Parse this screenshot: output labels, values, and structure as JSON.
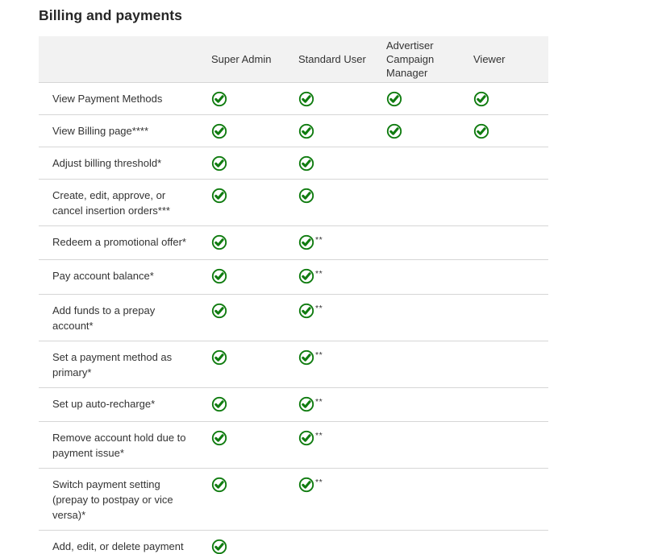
{
  "title": "Billing and payments",
  "colors": {
    "check_green": "#107C10",
    "header_bg": "#f2f2f2",
    "divider": "#d6d6d6",
    "text": "#333333",
    "title_text": "#262626"
  },
  "table": {
    "columns": [
      {
        "label": ""
      },
      {
        "label": "Super Admin"
      },
      {
        "label": "Standard User"
      },
      {
        "label": "Advertiser Campaign Manager"
      },
      {
        "label": "Viewer"
      }
    ],
    "rows": [
      {
        "label": "View Payment Methods",
        "cells": [
          {
            "check": true,
            "suffix": ""
          },
          {
            "check": true,
            "suffix": ""
          },
          {
            "check": true,
            "suffix": ""
          },
          {
            "check": true,
            "suffix": ""
          }
        ]
      },
      {
        "label": "View Billing page****",
        "cells": [
          {
            "check": true,
            "suffix": ""
          },
          {
            "check": true,
            "suffix": ""
          },
          {
            "check": true,
            "suffix": ""
          },
          {
            "check": true,
            "suffix": ""
          }
        ]
      },
      {
        "label": "Adjust billing threshold*",
        "cells": [
          {
            "check": true,
            "suffix": ""
          },
          {
            "check": true,
            "suffix": ""
          },
          {
            "check": false,
            "suffix": ""
          },
          {
            "check": false,
            "suffix": ""
          }
        ]
      },
      {
        "label": "Create, edit, approve, or cancel insertion orders***",
        "cells": [
          {
            "check": true,
            "suffix": ""
          },
          {
            "check": true,
            "suffix": ""
          },
          {
            "check": false,
            "suffix": ""
          },
          {
            "check": false,
            "suffix": ""
          }
        ]
      },
      {
        "label": "Redeem a promotional offer*",
        "cells": [
          {
            "check": true,
            "suffix": ""
          },
          {
            "check": true,
            "suffix": "**"
          },
          {
            "check": false,
            "suffix": ""
          },
          {
            "check": false,
            "suffix": ""
          }
        ]
      },
      {
        "label": "Pay account balance*",
        "cells": [
          {
            "check": true,
            "suffix": ""
          },
          {
            "check": true,
            "suffix": "**"
          },
          {
            "check": false,
            "suffix": ""
          },
          {
            "check": false,
            "suffix": ""
          }
        ]
      },
      {
        "label": "Add funds to a prepay account*",
        "cells": [
          {
            "check": true,
            "suffix": ""
          },
          {
            "check": true,
            "suffix": "**"
          },
          {
            "check": false,
            "suffix": ""
          },
          {
            "check": false,
            "suffix": ""
          }
        ]
      },
      {
        "label": "Set a payment method as primary*",
        "cells": [
          {
            "check": true,
            "suffix": ""
          },
          {
            "check": true,
            "suffix": "**"
          },
          {
            "check": false,
            "suffix": ""
          },
          {
            "check": false,
            "suffix": ""
          }
        ]
      },
      {
        "label": "Set up auto-recharge*",
        "cells": [
          {
            "check": true,
            "suffix": ""
          },
          {
            "check": true,
            "suffix": "**"
          },
          {
            "check": false,
            "suffix": ""
          },
          {
            "check": false,
            "suffix": ""
          }
        ]
      },
      {
        "label": "Remove account hold due to payment issue*",
        "cells": [
          {
            "check": true,
            "suffix": ""
          },
          {
            "check": true,
            "suffix": "**"
          },
          {
            "check": false,
            "suffix": ""
          },
          {
            "check": false,
            "suffix": ""
          }
        ]
      },
      {
        "label": "Switch payment setting (prepay to postpay or vice versa)*",
        "cells": [
          {
            "check": true,
            "suffix": ""
          },
          {
            "check": true,
            "suffix": "**"
          },
          {
            "check": false,
            "suffix": ""
          },
          {
            "check": false,
            "suffix": ""
          }
        ]
      },
      {
        "label": "Add, edit, or delete payment methods*",
        "cells": [
          {
            "check": true,
            "suffix": ""
          },
          {
            "check": false,
            "suffix": ""
          },
          {
            "check": false,
            "suffix": ""
          },
          {
            "check": false,
            "suffix": ""
          }
        ]
      }
    ]
  }
}
